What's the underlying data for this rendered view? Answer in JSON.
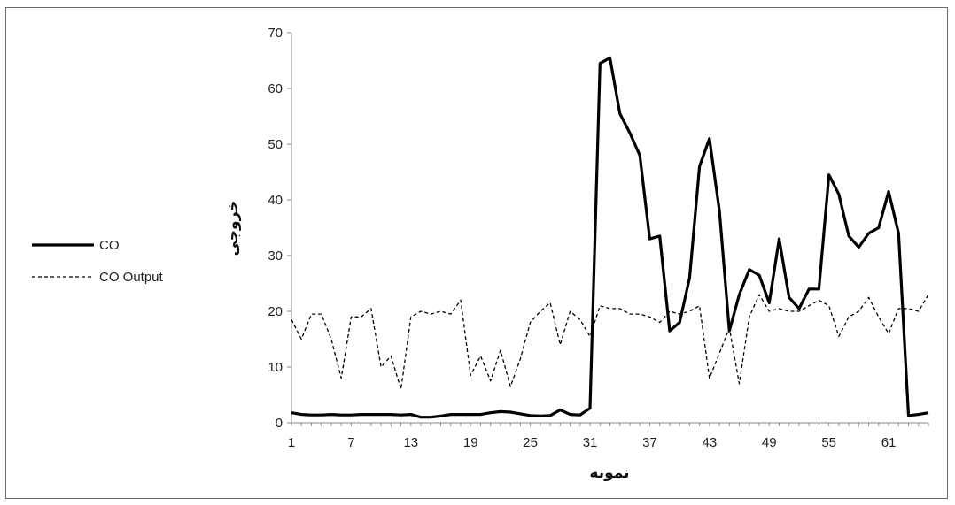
{
  "chart_data": {
    "type": "line",
    "title": "",
    "xlabel": "نمونه",
    "ylabel": "خروجی",
    "xlim": [
      1,
      65
    ],
    "ylim": [
      0,
      70
    ],
    "x_ticks": [
      "1",
      "7",
      "13",
      "19",
      "25",
      "31",
      "37",
      "43",
      "49",
      "55",
      "61"
    ],
    "y_ticks": [
      "0",
      "10",
      "20",
      "30",
      "40",
      "50",
      "60",
      "70"
    ],
    "legend_position": "left",
    "grid": false,
    "x": [
      1,
      2,
      3,
      4,
      5,
      6,
      7,
      8,
      9,
      10,
      11,
      12,
      13,
      14,
      15,
      16,
      17,
      18,
      19,
      20,
      21,
      22,
      23,
      24,
      25,
      26,
      27,
      28,
      29,
      30,
      31,
      32,
      33,
      34,
      35,
      36,
      37,
      38,
      39,
      40,
      41,
      42,
      43,
      44,
      45,
      46,
      47,
      48,
      49,
      50,
      51,
      52,
      53,
      54,
      55,
      56,
      57,
      58,
      59,
      60,
      61,
      62,
      63,
      64,
      65
    ],
    "series": [
      {
        "name": "CO",
        "style": "solid",
        "color": "#000000",
        "values": [
          1.8,
          1.5,
          1.4,
          1.4,
          1.5,
          1.4,
          1.4,
          1.5,
          1.5,
          1.5,
          1.5,
          1.4,
          1.5,
          1.0,
          1.0,
          1.2,
          1.5,
          1.5,
          1.5,
          1.5,
          1.8,
          2.0,
          1.9,
          1.6,
          1.3,
          1.2,
          1.3,
          2.3,
          1.5,
          1.4,
          2.6,
          64.5,
          65.5,
          55.5,
          52.0,
          48.0,
          33.0,
          33.5,
          16.5,
          18.0,
          26.0,
          46.0,
          51.0,
          38.0,
          16.5,
          23.0,
          27.5,
          26.5,
          21.5,
          33.0,
          22.5,
          20.5,
          24.0,
          24.0,
          44.5,
          41.0,
          33.5,
          31.5,
          34.0,
          35.0,
          41.5,
          34.0,
          1.3,
          1.5,
          1.8
        ]
      },
      {
        "name": "CO Output",
        "style": "dashed",
        "color": "#000000",
        "values": [
          18.5,
          15.0,
          19.5,
          19.5,
          15.0,
          8.0,
          19.0,
          19.0,
          20.5,
          10.0,
          12.0,
          6.0,
          19.0,
          20.0,
          19.5,
          20.0,
          19.5,
          22.0,
          8.5,
          12.0,
          7.5,
          13.0,
          6.5,
          11.5,
          18.0,
          20.0,
          21.5,
          14.0,
          20.0,
          18.5,
          15.5,
          21.0,
          20.5,
          20.5,
          19.5,
          19.5,
          19.0,
          18.0,
          20.0,
          19.5,
          20.0,
          21.0,
          8.0,
          12.5,
          17.0,
          7.0,
          19.0,
          23.0,
          20.0,
          20.5,
          20.0,
          20.0,
          21.0,
          22.0,
          21.0,
          15.5,
          19.0,
          20.0,
          22.5,
          19.0,
          16.0,
          20.5,
          20.5,
          20.0,
          23.0
        ]
      }
    ]
  }
}
